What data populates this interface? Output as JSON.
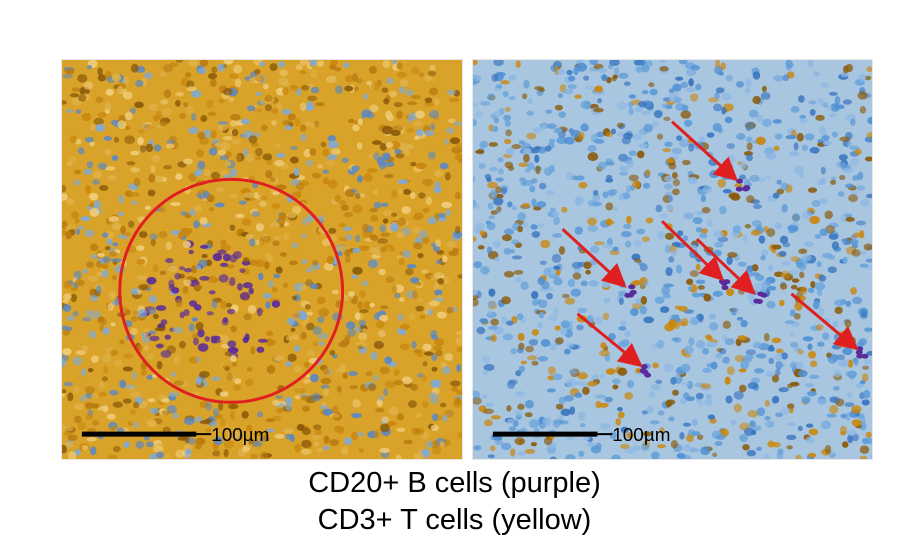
{
  "panels": [
    {
      "scale_label": "100µm",
      "background": "#d9a329",
      "dominant_stain": "yellow",
      "annotation": "circle"
    },
    {
      "scale_label": "100µm",
      "background": "#a9c6e0",
      "dominant_stain": "blue",
      "annotation": "arrows"
    }
  ],
  "caption": {
    "line1": "CD20+ B cells (purple)",
    "line2": "CD3+ T cells (yellow)"
  },
  "colors": {
    "cd3_yellow": "#c9870e",
    "cd20_purple": "#5a2a9a",
    "nuclei_blue": "#5b9bd5",
    "annotation_red": "#e02020",
    "scale_bar": "#000000"
  }
}
